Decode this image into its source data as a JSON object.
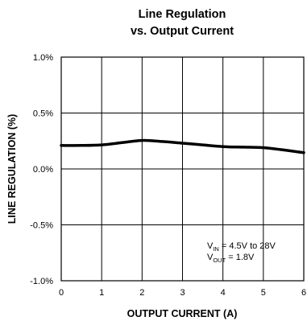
{
  "chart_data": {
    "type": "line",
    "title_line1": "Line Regulation",
    "title_line2": "vs. Output Current",
    "xlabel": "OUTPUT CURRENT (A)",
    "ylabel": "LINE REGULATION (%)",
    "xlim": [
      0,
      6
    ],
    "ylim": [
      -1.0,
      1.0
    ],
    "x_ticks": [
      0,
      1,
      2,
      3,
      4,
      5,
      6
    ],
    "x_tick_labels": [
      "0",
      "1",
      "2",
      "3",
      "4",
      "5",
      "6"
    ],
    "y_ticks": [
      1.0,
      0.5,
      0.0,
      -0.5,
      -1.0
    ],
    "y_tick_labels": [
      "1.0%",
      "0.5%",
      "0.0%",
      "-0.5%",
      "-1.0%"
    ],
    "grid": true,
    "series": [
      {
        "x": [
          0,
          0.5,
          1.0,
          1.5,
          2.0,
          2.5,
          3.0,
          3.5,
          4.0,
          4.5,
          5.0,
          5.5,
          6.0
        ],
        "values": [
          0.21,
          0.21,
          0.215,
          0.235,
          0.255,
          0.245,
          0.23,
          0.215,
          0.2,
          0.195,
          0.19,
          0.17,
          0.145
        ]
      }
    ],
    "annotation": {
      "vin_prefix": "V",
      "vin_sub": "IN",
      "vin_value": " = 4.5V to 28V",
      "vout_prefix": "V",
      "vout_sub": "OUT",
      "vout_value": " = 1.8V"
    }
  }
}
